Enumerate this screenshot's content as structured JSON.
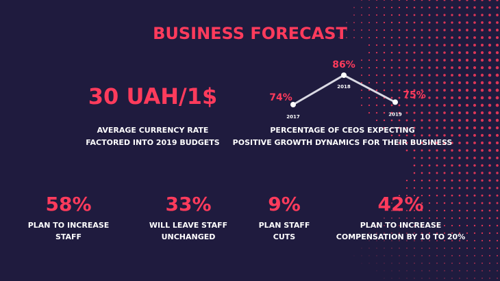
{
  "title": "BUSINESS FORECAST",
  "currency": {
    "headline": "30 UAH/1$",
    "caption": [
      "AVERAGE CURRENCY RATE",
      "FACTORED INTO 2019 BUDGETS"
    ]
  },
  "chart_data": {
    "type": "line",
    "categories": [
      "2017",
      "2018",
      "2019"
    ],
    "values": [
      74,
      86,
      75
    ],
    "value_labels": [
      "74%",
      "86%",
      "75%"
    ],
    "color": "#d9d9e3",
    "caption": [
      "PERCENTAGE OF CEOS EXPECTING",
      "POSITIVE GROWTH DYNAMICS FOR THEIR BUSINESS"
    ]
  },
  "stats": [
    {
      "value": "58%",
      "caption": [
        "PLAN TO INCREASE",
        "STAFF"
      ]
    },
    {
      "value": "33%",
      "caption": [
        "WILL LEAVE STAFF",
        "UNCHANGED"
      ]
    },
    {
      "value": "9%",
      "caption": [
        "PLAN STAFF",
        "CUTS"
      ]
    },
    {
      "value": "42%",
      "caption": [
        "PLAN TO INCREASE",
        "COMPENSATION BY 10 TO 20%"
      ]
    }
  ]
}
